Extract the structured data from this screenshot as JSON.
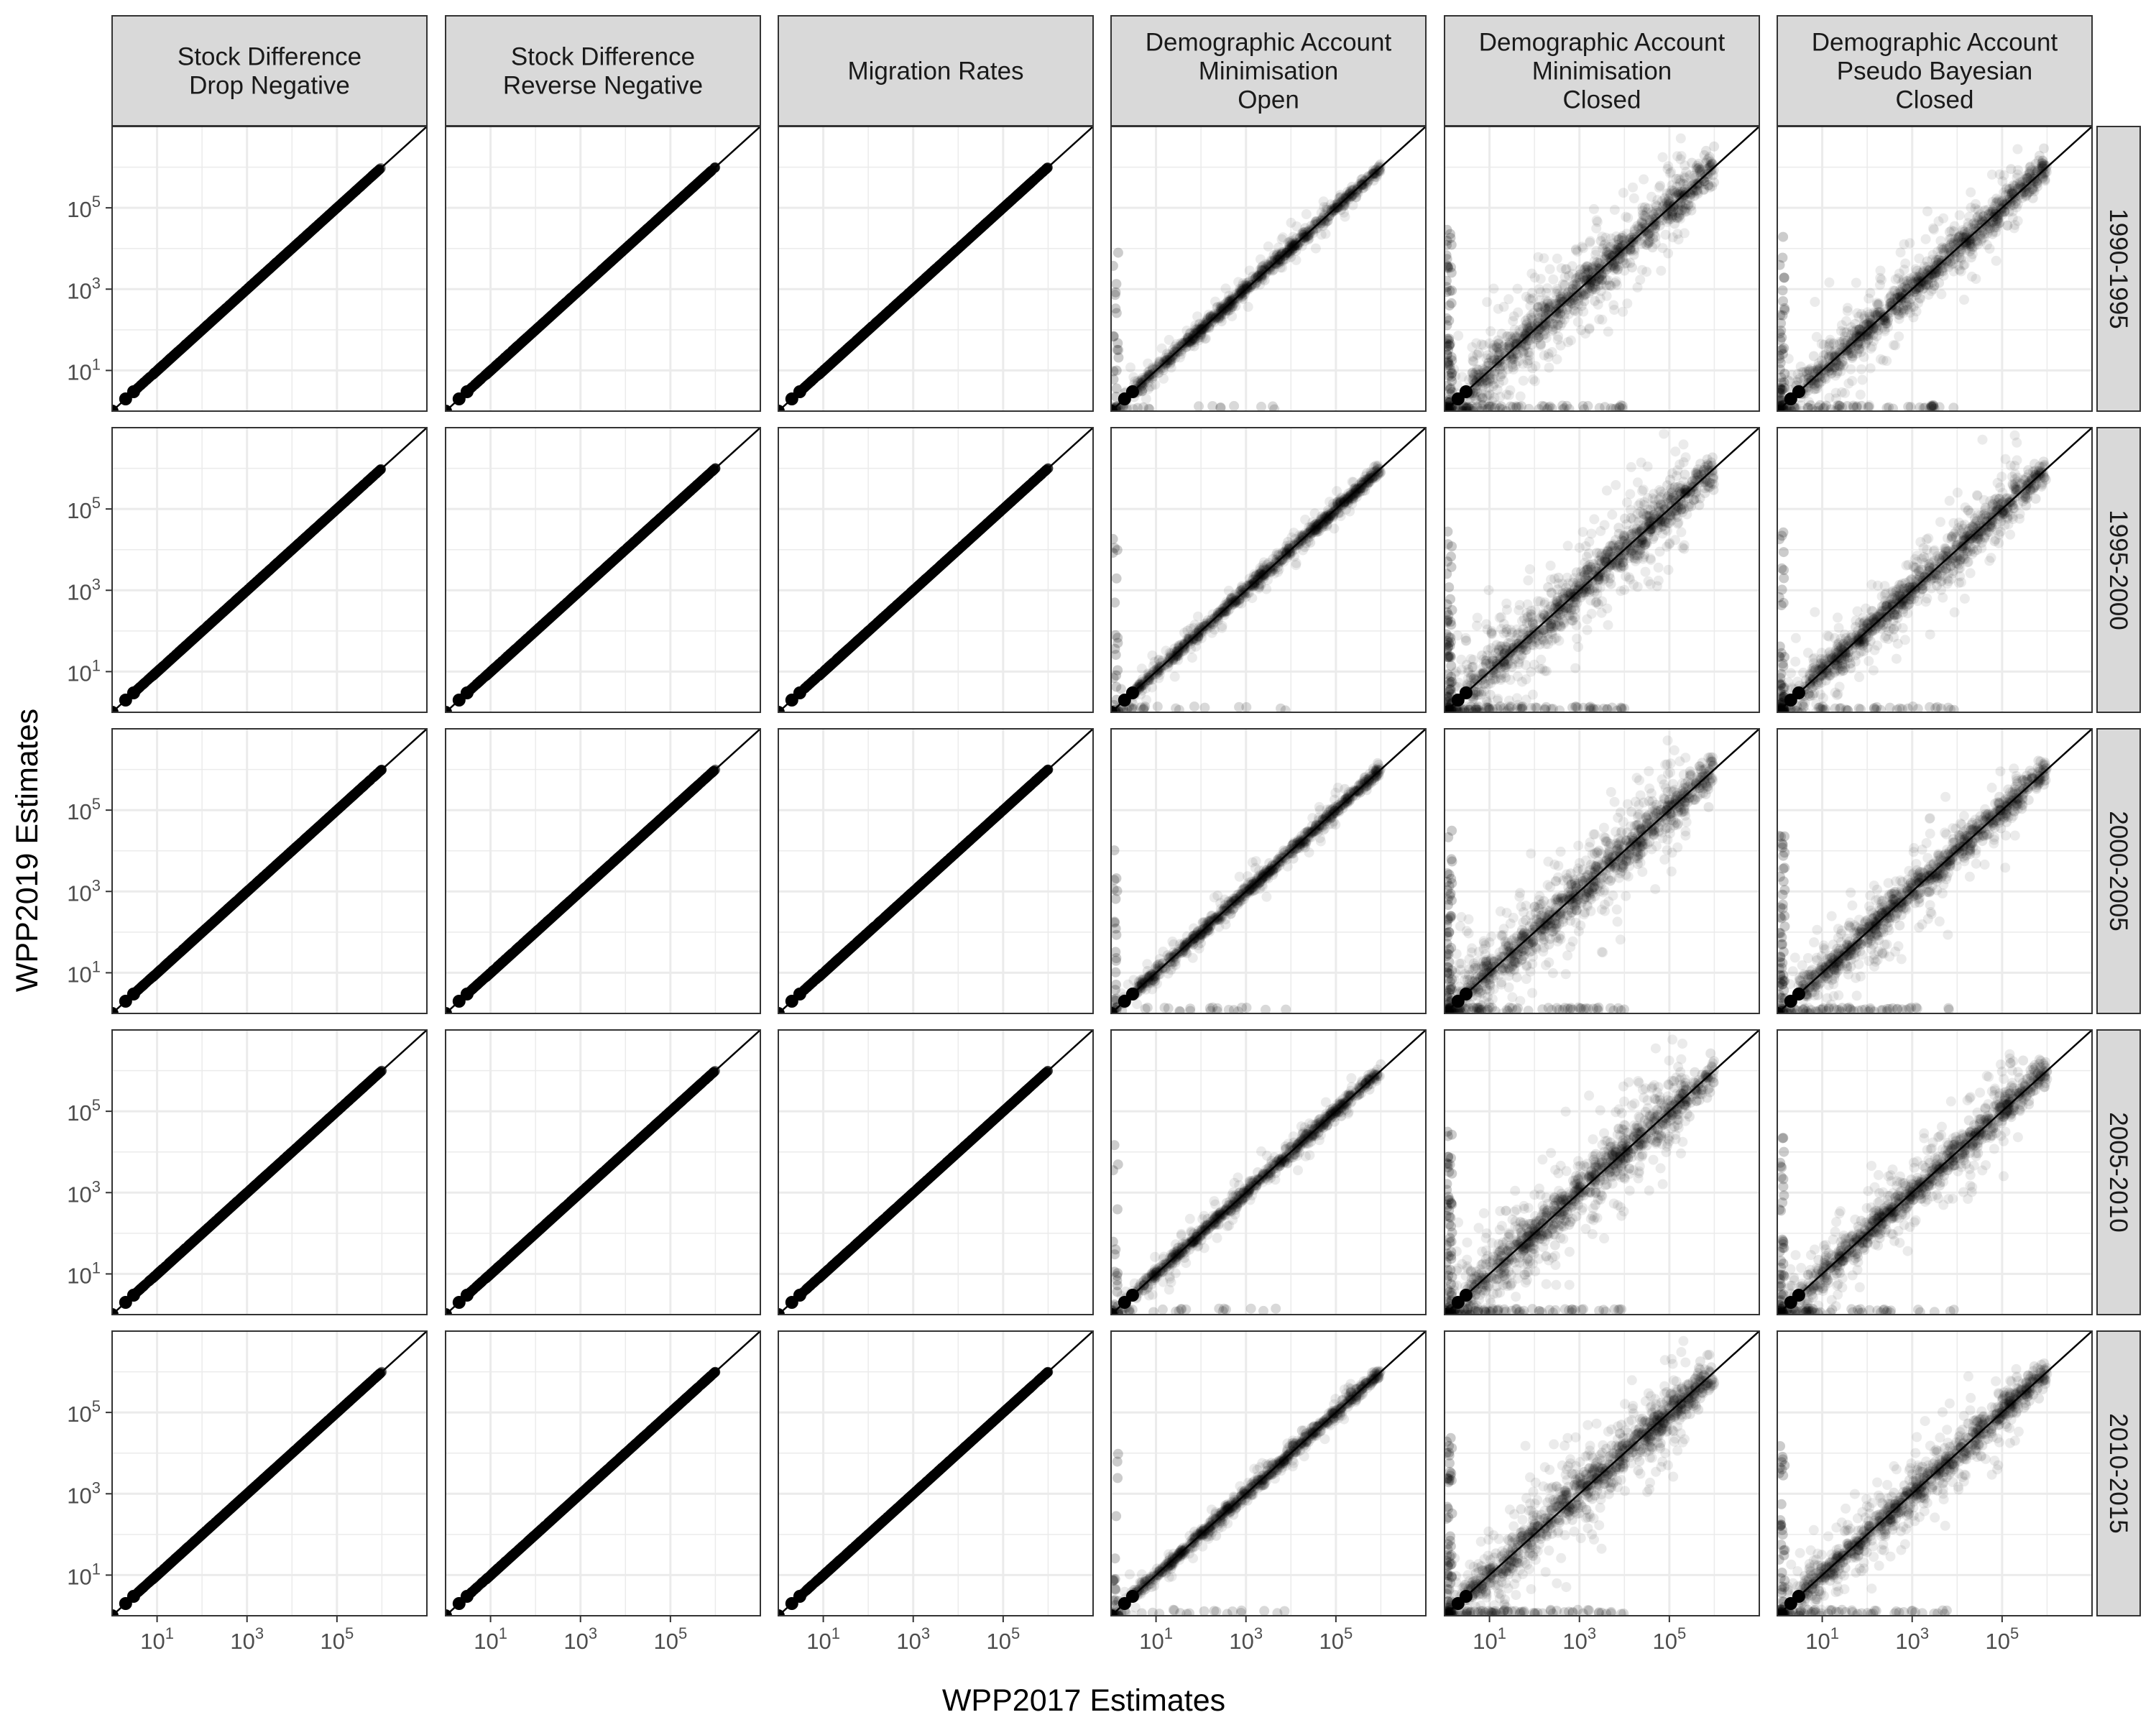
{
  "chart_data": {
    "type": "scatter",
    "title": "",
    "xlabel": "WPP2017 Estimates",
    "ylabel": "WPP2019 Estimates",
    "x_scale": "log10",
    "y_scale": "log10",
    "xlim": [
      1,
      10000000
    ],
    "ylim": [
      1,
      10000000
    ],
    "x_ticks": [
      10,
      1000,
      100000
    ],
    "y_ticks": [
      10,
      1000,
      100000
    ],
    "tick_labels": [
      {
        "base": "10",
        "exp": "1"
      },
      {
        "base": "10",
        "exp": "3"
      },
      {
        "base": "10",
        "exp": "5"
      }
    ],
    "reference_line": "y = x",
    "grid": true,
    "theme": {
      "strip_fill": "#d9d9d9",
      "grid_color": "#ebebeb",
      "point_color": "#000000",
      "border_color": "#333333"
    },
    "columns": [
      {
        "lines": [
          "Stock Difference",
          "Drop Negative"
        ],
        "scatter_spread": 0.0
      },
      {
        "lines": [
          "Stock Difference",
          "Reverse Negative"
        ],
        "scatter_spread": 0.0
      },
      {
        "lines": [
          "Migration Rates"
        ],
        "scatter_spread": 0.0
      },
      {
        "lines": [
          "Demographic Account",
          "Minimisation",
          "Open"
        ],
        "scatter_spread": 0.15
      },
      {
        "lines": [
          "Demographic Account",
          "Minimisation",
          "Closed"
        ],
        "scatter_spread": 0.45
      },
      {
        "lines": [
          "Demographic Account",
          "Pseudo Bayesian",
          "Closed"
        ],
        "scatter_spread": 0.35
      }
    ],
    "rows": [
      {
        "label": "1990-1995"
      },
      {
        "label": "1995-2000"
      },
      {
        "label": "2000-2005"
      },
      {
        "label": "2005-2010"
      },
      {
        "label": "2010-2015"
      }
    ]
  }
}
